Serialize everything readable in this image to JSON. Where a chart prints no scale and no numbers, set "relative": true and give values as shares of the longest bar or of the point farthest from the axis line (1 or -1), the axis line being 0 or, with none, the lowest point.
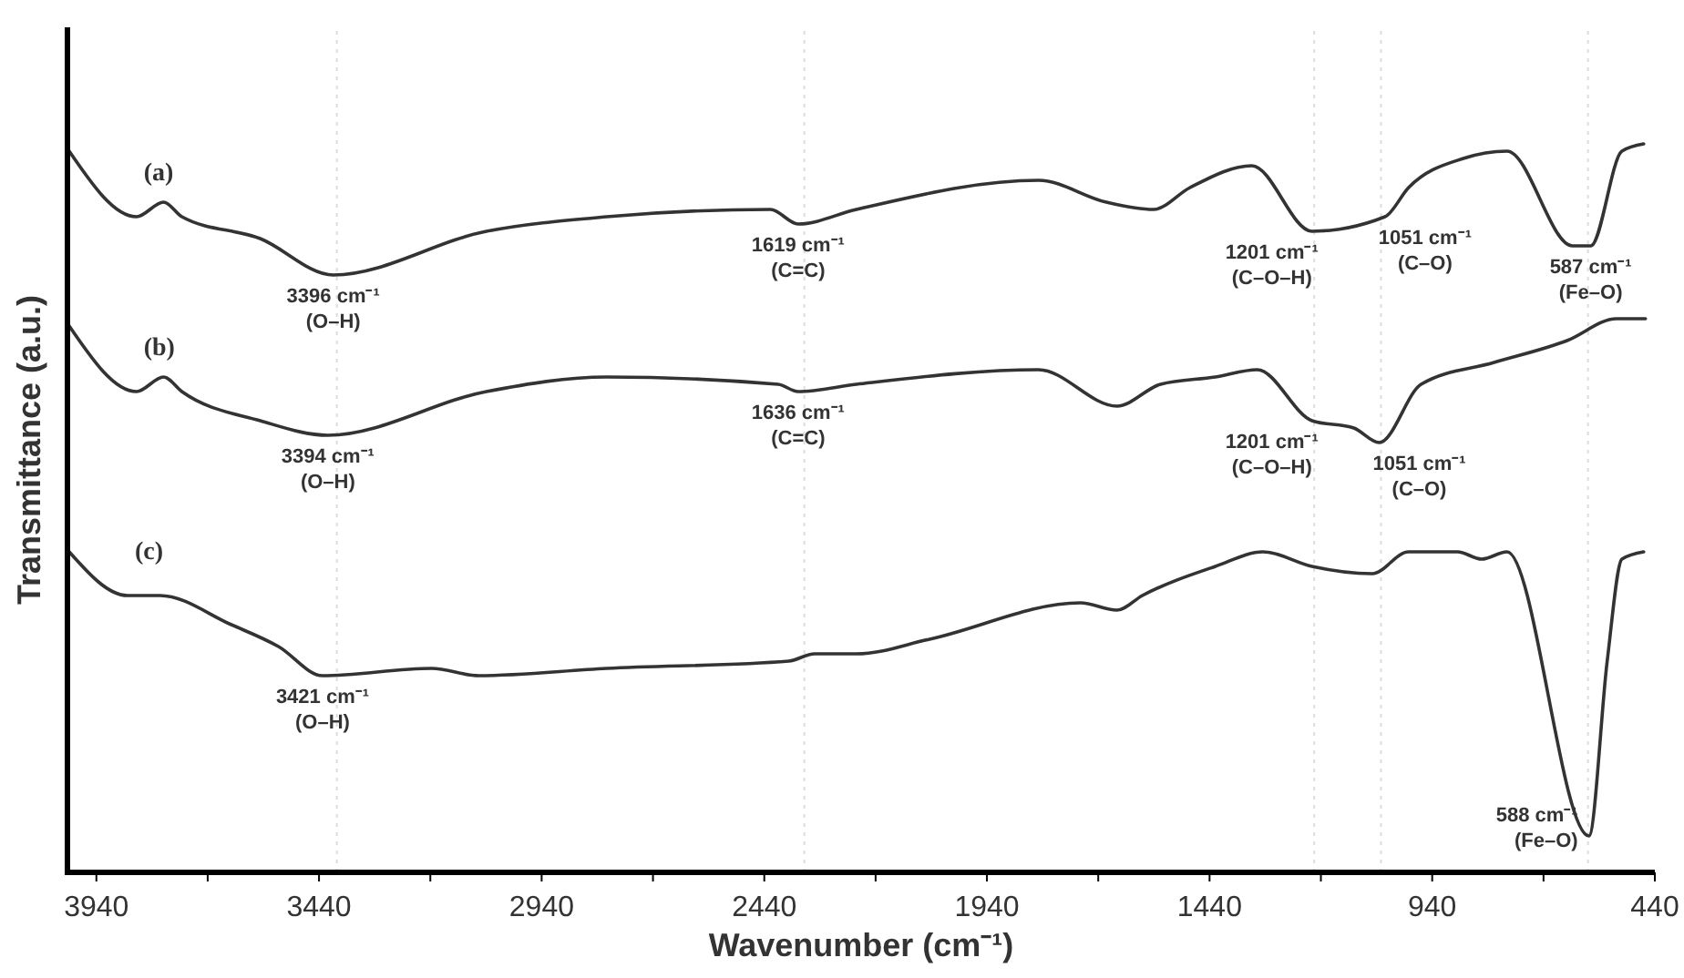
{
  "chart_data": {
    "type": "line",
    "relative": true,
    "xlabel": "Wavenumber (cm⁻¹)",
    "ylabel": "Transmittance (a.u.)",
    "xlim": [
      4005,
      440
    ],
    "xticks": [
      3940,
      {
        "value": 3690,
        "label": null
      },
      3440,
      {
        "value": 3190,
        "label": null
      },
      2940,
      {
        "value": 2690,
        "label": null
      },
      2440,
      {
        "value": 2190,
        "label": null
      },
      1940,
      {
        "value": 1690,
        "label": null
      },
      1440,
      {
        "value": 1190,
        "label": null
      },
      940,
      {
        "value": 690,
        "label": null
      },
      440
    ],
    "tick_labels": "x",
    "grid": false,
    "marker": "none",
    "line_style": "solid",
    "series": [
      {
        "name": "(a)",
        "color": "#333333",
        "x": [
          4001,
          3850,
          3789,
          3748,
          3572,
          3408,
          3064,
          2794,
          2426,
          2364,
          2233,
          1824,
          1672,
          1566,
          1484,
          1345,
          1210,
          1046,
          993,
          870,
          772,
          625,
          584,
          514,
          465
        ],
        "values": [
          0.99,
          0.9,
          0.92,
          0.9,
          0.87,
          0.82,
          0.88,
          0.9,
          0.91,
          0.89,
          0.91,
          0.95,
          0.92,
          0.91,
          0.94,
          0.97,
          0.88,
          0.9,
          0.94,
          0.98,
          0.99,
          0.86,
          0.86,
          0.99,
          1.0
        ]
      },
      {
        "name": "(b)",
        "color": "#333333",
        "x": [
          4001,
          3850,
          3789,
          3748,
          3572,
          3420,
          3064,
          2794,
          2409,
          2364,
          2233,
          1824,
          1648,
          1550,
          1427,
          1333,
          1210,
          1116,
          1059,
          965,
          801,
          637,
          526,
          461
        ],
        "values": [
          0.75,
          0.66,
          0.68,
          0.66,
          0.62,
          0.6,
          0.66,
          0.68,
          0.67,
          0.66,
          0.67,
          0.69,
          0.64,
          0.67,
          0.68,
          0.69,
          0.62,
          0.61,
          0.59,
          0.67,
          0.7,
          0.73,
          0.76,
          0.76
        ]
      },
      {
        "name": "(c)",
        "color": "#333333",
        "x": [
          4001,
          3870,
          3797,
          3637,
          3531,
          3432,
          3187,
          3081,
          2794,
          2385,
          2327,
          2233,
          2069,
          1730,
          1648,
          1591,
          1427,
          1320,
          1210,
          1075,
          993,
          883,
          829,
          772,
          588,
          547,
          514,
          465
        ],
        "values": [
          0.44,
          0.38,
          0.38,
          0.34,
          0.31,
          0.27,
          0.28,
          0.27,
          0.28,
          0.29,
          0.3,
          0.3,
          0.32,
          0.37,
          0.36,
          0.38,
          0.42,
          0.44,
          0.42,
          0.41,
          0.44,
          0.44,
          0.43,
          0.44,
          0.05,
          0.29,
          0.43,
          0.44
        ]
      }
    ],
    "ref_lines": [
      {
        "axis": "x",
        "value": 3400,
        "color": "#dddddd",
        "line_style": "dotted"
      },
      {
        "axis": "x",
        "value": 2350,
        "color": "#dddddd",
        "line_style": "dotted"
      },
      {
        "axis": "x",
        "value": 1205,
        "color": "#dddddd",
        "line_style": "dotted"
      },
      {
        "axis": "x",
        "value": 1055,
        "color": "#dddddd",
        "line_style": "dotted"
      },
      {
        "axis": "x",
        "value": 590,
        "color": "#dddddd",
        "line_style": "dotted"
      }
    ],
    "annotations": [
      {
        "text": "3396 cm⁻¹\n(O–H)",
        "x": 3408,
        "y": 0.82
      },
      {
        "text": "1619 cm⁻¹\n(C=C)",
        "x": 2364,
        "y": 0.89
      },
      {
        "text": "1201 cm⁻¹\n(C–O–H)",
        "x": 1210,
        "y": 0.88
      },
      {
        "text": "1051 cm⁻¹\n(C–O)",
        "x": 1046,
        "y": 0.9
      },
      {
        "text": "587 cm⁻¹\n(Fe–O)",
        "x": 584,
        "y": 0.86
      },
      {
        "text": "3394 cm⁻¹\n(O–H)",
        "x": 3420,
        "y": 0.6
      },
      {
        "text": "1636 cm⁻¹\n(C=C)",
        "x": 2364,
        "y": 0.66
      },
      {
        "text": "1201 cm⁻¹\n(C–O–H)",
        "x": 1210,
        "y": 0.62
      },
      {
        "text": "1051 cm⁻¹\n(C–O)",
        "x": 1059,
        "y": 0.59
      },
      {
        "text": "3421 cm⁻¹\n(O–H)",
        "x": 3432,
        "y": 0.27
      },
      {
        "text": "588 cm⁻¹\n(Fe–O)",
        "x": 588,
        "y": 0.05
      }
    ]
  }
}
